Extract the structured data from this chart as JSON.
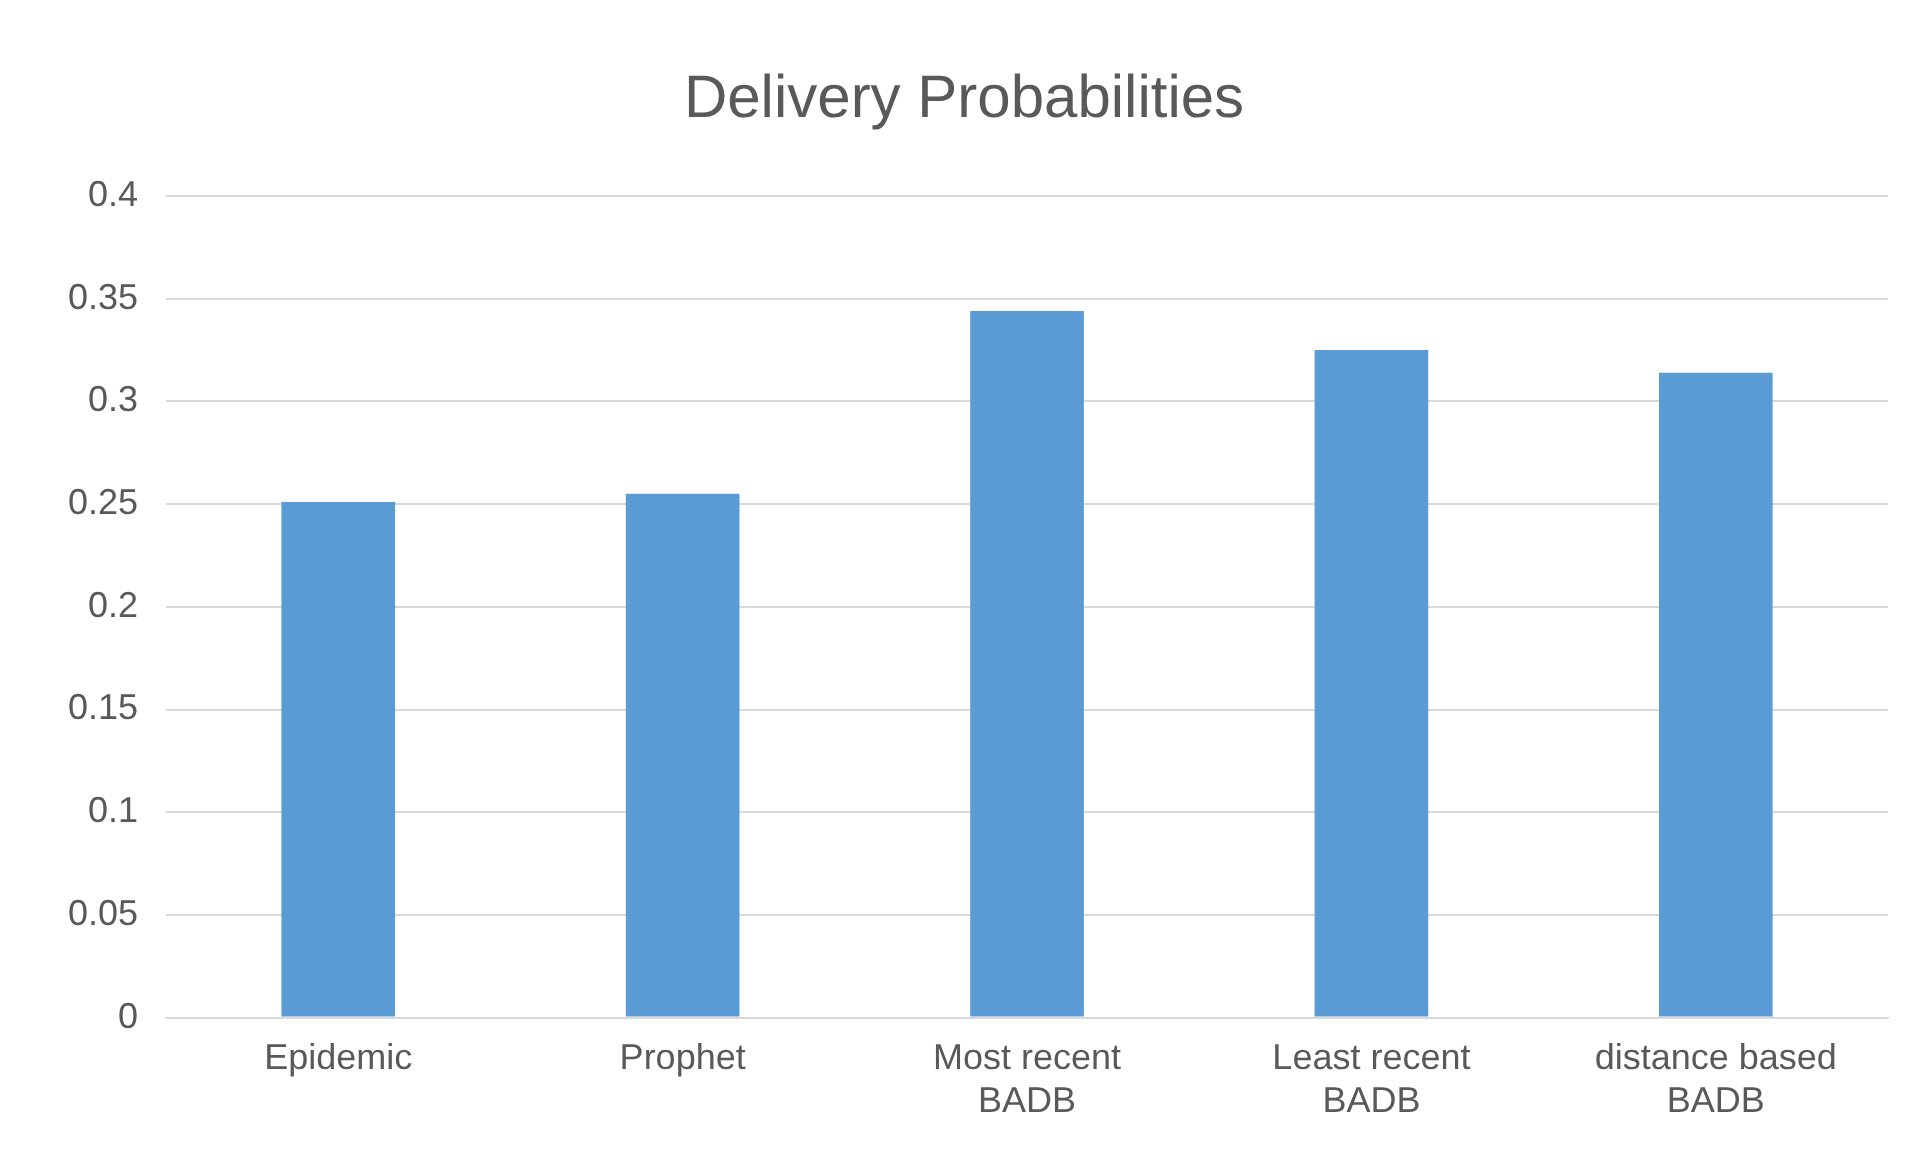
{
  "chart_data": {
    "type": "bar",
    "title": "Delivery Probabilities",
    "categories": [
      "Epidemic",
      "Prophet",
      "Most recent BADB",
      "Least recent BADB",
      "distance based BADB"
    ],
    "values": [
      0.251,
      0.255,
      0.344,
      0.325,
      0.314
    ],
    "color": "#5b9bd5",
    "ylim": [
      0,
      0.4
    ],
    "yticks": [
      0,
      0.05,
      0.1,
      0.15,
      0.2,
      0.25,
      0.3,
      0.35,
      0.4
    ],
    "grid": "y",
    "legend": false
  }
}
